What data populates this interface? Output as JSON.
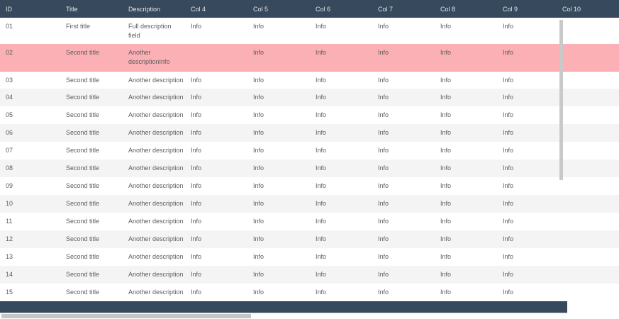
{
  "colors": {
    "header_bg": "#37495c",
    "header_text": "#e3e6e9",
    "body_text": "#5d5d5d",
    "row_alt_bg": "#f4f4f4",
    "selected_row_bg": "#fab0b4",
    "footer_bg": "#37495c",
    "scrollbar_thumb": "#c6c6c6"
  },
  "table": {
    "columns": [
      {
        "id": "id",
        "label": "ID"
      },
      {
        "id": "title",
        "label": "Title"
      },
      {
        "id": "description",
        "label": "Description"
      },
      {
        "id": "col4",
        "label": "Col 4"
      },
      {
        "id": "col5",
        "label": "Col 5"
      },
      {
        "id": "col6",
        "label": "Col 6"
      },
      {
        "id": "col7",
        "label": "Col 7"
      },
      {
        "id": "col8",
        "label": "Col 8"
      },
      {
        "id": "col9",
        "label": "Col 9"
      },
      {
        "id": "col10",
        "label": "Col 10"
      }
    ],
    "rows": [
      {
        "id": "01",
        "title": "First title",
        "description_lines": [
          "Full description",
          "field"
        ],
        "col4": "Info",
        "col5": "Info",
        "col6": "Info",
        "col7": "Info",
        "col8": "Info",
        "col9": "Info",
        "col10": "",
        "selected": false
      },
      {
        "id": "02",
        "title": "Second title",
        "description_lines": [
          "Another",
          "descriptionInfo"
        ],
        "col4": "",
        "col5": "Info",
        "col6": "Info",
        "col7": "Info",
        "col8": "Info",
        "col9": "Info",
        "col10": "",
        "selected": true
      },
      {
        "id": "03",
        "title": "Second title",
        "description_lines": [
          "Another description"
        ],
        "col4": "Info",
        "col5": "Info",
        "col6": "Info",
        "col7": "Info",
        "col8": "Info",
        "col9": "Info",
        "col10": "",
        "selected": false
      },
      {
        "id": "04",
        "title": "Second title",
        "description_lines": [
          "Another description"
        ],
        "col4": "Info",
        "col5": "Info",
        "col6": "Info",
        "col7": "Info",
        "col8": "Info",
        "col9": "Info",
        "col10": "",
        "selected": false
      },
      {
        "id": "05",
        "title": "Second title",
        "description_lines": [
          "Another description"
        ],
        "col4": "Info",
        "col5": "Info",
        "col6": "Info",
        "col7": "Info",
        "col8": "Info",
        "col9": "Info",
        "col10": "",
        "selected": false
      },
      {
        "id": "06",
        "title": "Second title",
        "description_lines": [
          "Another description"
        ],
        "col4": "Info",
        "col5": "Info",
        "col6": "Info",
        "col7": "Info",
        "col8": "Info",
        "col9": "Info",
        "col10": "",
        "selected": false
      },
      {
        "id": "07",
        "title": "Second title",
        "description_lines": [
          "Another description"
        ],
        "col4": "Info",
        "col5": "Info",
        "col6": "Info",
        "col7": "Info",
        "col8": "Info",
        "col9": "Info",
        "col10": "",
        "selected": false
      },
      {
        "id": "08",
        "title": "Second title",
        "description_lines": [
          "Another description"
        ],
        "col4": "Info",
        "col5": "Info",
        "col6": "Info",
        "col7": "Info",
        "col8": "Info",
        "col9": "Info",
        "col10": "",
        "selected": false
      },
      {
        "id": "09",
        "title": "Second title",
        "description_lines": [
          "Another description"
        ],
        "col4": "Info",
        "col5": "Info",
        "col6": "Info",
        "col7": "Info",
        "col8": "Info",
        "col9": "Info",
        "col10": "",
        "selected": false
      },
      {
        "id": "10",
        "title": "Second title",
        "description_lines": [
          "Another description"
        ],
        "col4": "Info",
        "col5": "Info",
        "col6": "Info",
        "col7": "Info",
        "col8": "Info",
        "col9": "Info",
        "col10": "",
        "selected": false
      },
      {
        "id": "11",
        "title": "Second title",
        "description_lines": [
          "Another description"
        ],
        "col4": "Info",
        "col5": "Info",
        "col6": "Info",
        "col7": "Info",
        "col8": "Info",
        "col9": "Info",
        "col10": "",
        "selected": false
      },
      {
        "id": "12",
        "title": "Second title",
        "description_lines": [
          "Another description"
        ],
        "col4": "Info",
        "col5": "Info",
        "col6": "Info",
        "col7": "Info",
        "col8": "Info",
        "col9": "Info",
        "col10": "",
        "selected": false
      },
      {
        "id": "13",
        "title": "Second title",
        "description_lines": [
          "Another description"
        ],
        "col4": "Info",
        "col5": "Info",
        "col6": "Info",
        "col7": "Info",
        "col8": "Info",
        "col9": "Info",
        "col10": "",
        "selected": false
      },
      {
        "id": "14",
        "title": "Second title",
        "description_lines": [
          "Another description"
        ],
        "col4": "Info",
        "col5": "Info",
        "col6": "Info",
        "col7": "Info",
        "col8": "Info",
        "col9": "Info",
        "col10": "",
        "selected": false
      },
      {
        "id": "15",
        "title": "Second title",
        "description_lines": [
          "Another description"
        ],
        "col4": "Info",
        "col5": "Info",
        "col6": "Info",
        "col7": "Info",
        "col8": "Info",
        "col9": "Info",
        "col10": "",
        "selected": false
      }
    ]
  }
}
